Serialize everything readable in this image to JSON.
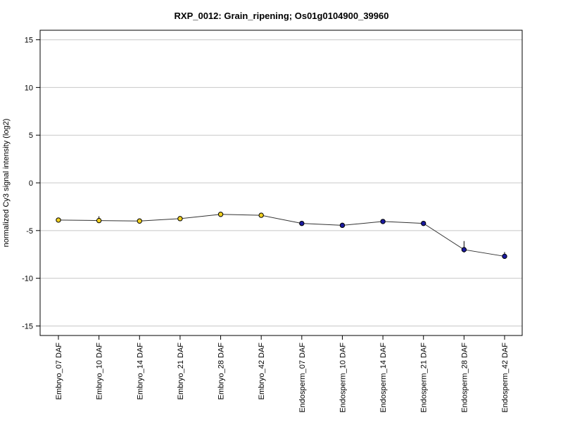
{
  "chart_data": {
    "type": "line",
    "title": "RXP_0012: Grain_ripening; Os01g0104900_39960",
    "xlabel": "",
    "ylabel": "normalized Cy3 signal intensity (log2)",
    "ylim": [
      -16,
      16
    ],
    "yticks": [
      15,
      10,
      5,
      0,
      -5,
      -10,
      -15
    ],
    "grid": "horizontal",
    "categories": [
      "Embryo_07 DAF",
      "Embryo_10 DAF",
      "Embryo_14 DAF",
      "Embryo_21 DAF",
      "Embryo_28 DAF",
      "Embryo_42 DAF",
      "Endosperm_07 DAF",
      "Endosperm_10 DAF",
      "Endosperm_14 DAF",
      "Endosperm_21 DAF",
      "Endosperm_28 DAF",
      "Endosperm_42 DAF"
    ],
    "series": [
      {
        "values": [
          -3.9,
          -3.95,
          -4.0,
          -3.75,
          -3.3,
          -3.4,
          -4.25,
          -4.45,
          -4.05,
          -4.25,
          -7.0,
          -7.7
        ],
        "error_upper": [
          0.1,
          0.45,
          0.1,
          0.15,
          0.15,
          0.1,
          0.1,
          0.1,
          0.1,
          0.1,
          0.9,
          0.45
        ],
        "error_lower": [
          0.1,
          0.1,
          0.1,
          0.15,
          0.1,
          0.1,
          0.1,
          0.1,
          0.1,
          0.1,
          0.3,
          0.2
        ],
        "point_colors": [
          "#f0d020",
          "#f0d020",
          "#f0d020",
          "#f0d020",
          "#f0d020",
          "#f0d020",
          "#1a1aa0",
          "#1a1aa0",
          "#1a1aa0",
          "#1a1aa0",
          "#1a1aa0",
          "#1a1aa0"
        ]
      }
    ]
  }
}
